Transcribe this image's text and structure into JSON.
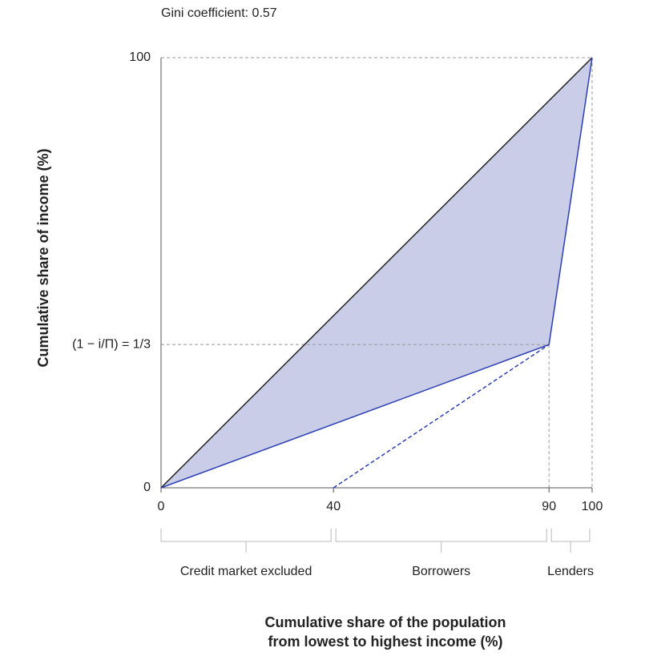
{
  "chart_data": {
    "type": "line",
    "annotation": "Gini coefficient: 0.57",
    "x_label": [
      "Cumulative share of the population",
      "from lowest to highest income (%)"
    ],
    "y_label": "Cumulative share of income (%)",
    "xlim": [
      0,
      100
    ],
    "ylim": [
      0,
      100
    ],
    "xticks": [
      0,
      40,
      90,
      100
    ],
    "yticks": [
      0,
      {
        "value": 33.3,
        "label": "(1 − i/Π) = 1/3"
      },
      100
    ],
    "series": [
      {
        "x": [
          0,
          100
        ],
        "values": [
          0,
          100
        ],
        "color": "#222222",
        "dashed": false
      },
      {
        "x": [
          0,
          90,
          100
        ],
        "values": [
          0,
          33.3,
          100
        ],
        "color": "#2c3fb5",
        "dashed": false
      },
      {
        "x": [
          40,
          90
        ],
        "values": [
          0,
          33.3
        ],
        "color": "#2c3fb5",
        "dashed": true
      }
    ],
    "shade_color": "#c9cde8",
    "groups": [
      {
        "label": "Credit market excluded",
        "start": 0,
        "end": 40
      },
      {
        "label": "Borrowers",
        "start": 40,
        "end": 90
      },
      {
        "label": "Lenders",
        "start": 90,
        "end": 100
      }
    ]
  }
}
